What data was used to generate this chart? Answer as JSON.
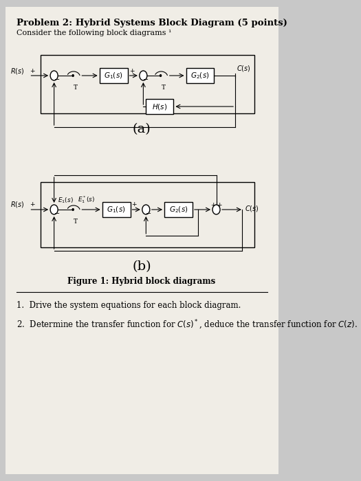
{
  "title": "Problem 2: Hybrid Systems Block Diagram (5 points)",
  "subtitle": "Consider the following block diagrams ¹",
  "bg_color": "#c8c8c8",
  "paper_color": "#f0ede6",
  "diagram_a_label": "(a)",
  "diagram_b_label": "(b)",
  "figure_caption": "Figure 1: Hybrid block diagrams",
  "question1": "1.  Drive the system equations for each block diagram.",
  "question2": "2.  Determine the transfer function for $C(s)^*$, deduce the transfer function for $C(z)$.",
  "box_color": "white",
  "line_color": "black"
}
